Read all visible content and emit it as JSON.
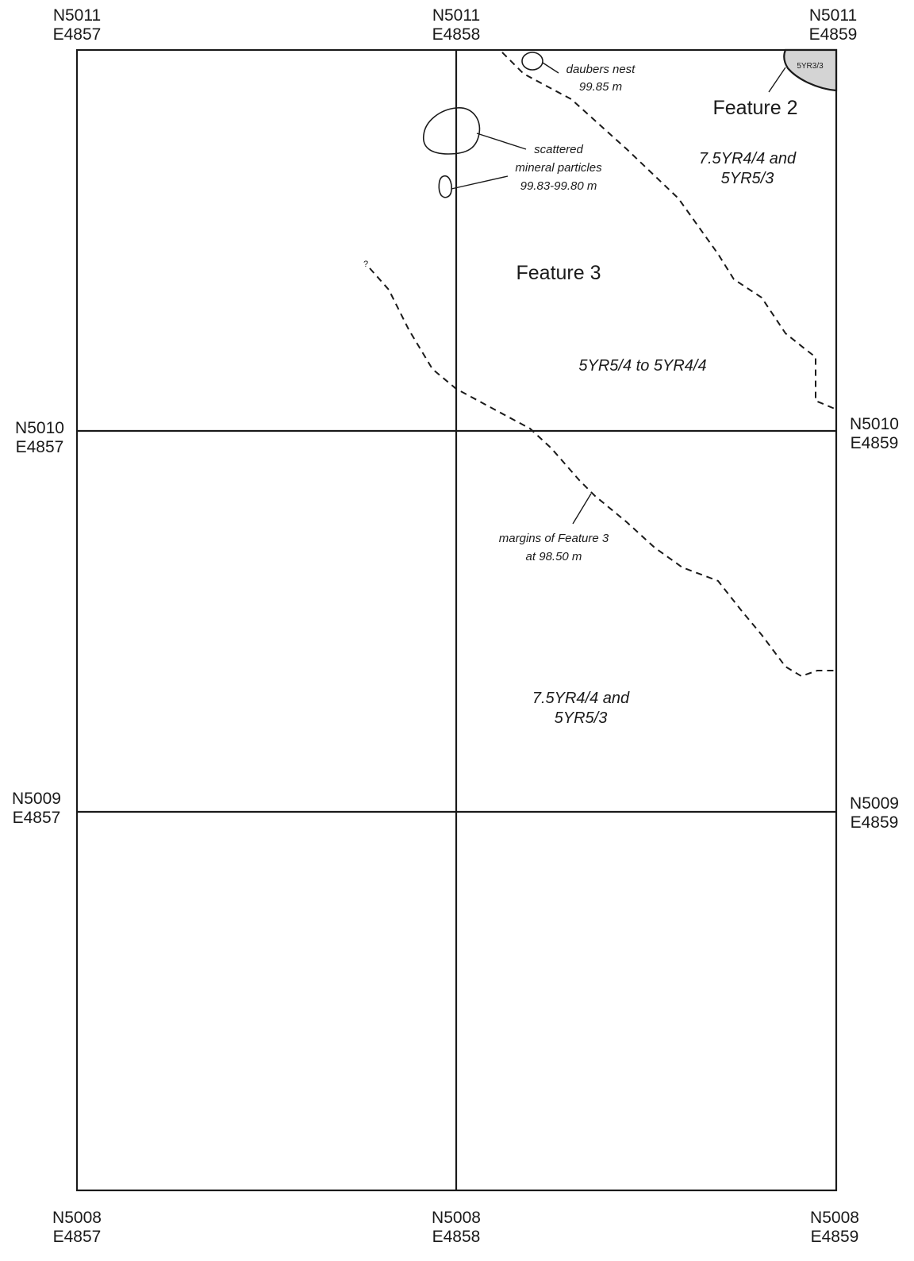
{
  "corners": {
    "top_left": {
      "n": "N5011",
      "e": "E4857"
    },
    "top_mid": {
      "n": "N5011",
      "e": "E4858"
    },
    "top_right": {
      "n": "N5011",
      "e": "E4859"
    },
    "mid_left": {
      "n": "N5010",
      "e": "E4857"
    },
    "mid_right": {
      "n": "N5010",
      "e": "E4859"
    },
    "low_left": {
      "n": "N5009",
      "e": "E4857"
    },
    "low_right": {
      "n": "N5009",
      "e": "E4859"
    },
    "bot_left": {
      "n": "N5008",
      "e": "E4857"
    },
    "bot_mid": {
      "n": "N5008",
      "e": "E4858"
    },
    "bot_right": {
      "n": "N5008",
      "e": "E4859"
    }
  },
  "features": {
    "feature2": "Feature 2",
    "feature2_color": "5YR3/3",
    "feature3": "Feature 3"
  },
  "soils": {
    "upper_right": {
      "line1": "7.5YR4/4 and",
      "line2": "5YR5/3"
    },
    "feature3": "5YR5/4 to 5YR4/4",
    "lower": {
      "line1": "7.5YR4/4 and",
      "line2": "5YR5/3"
    }
  },
  "notes": {
    "daubers": {
      "line1": "daubers nest",
      "line2": "99.85 m"
    },
    "mineral": {
      "line1": "scattered",
      "line2": "mineral particles",
      "line3": "99.83-99.80 m"
    },
    "margins": {
      "line1": "margins of Feature 3",
      "line2": "at 98.50 m"
    },
    "query": "?"
  },
  "colors": {
    "feature2_fill": "#d4d4d4",
    "ink": "#1a1a1a"
  }
}
